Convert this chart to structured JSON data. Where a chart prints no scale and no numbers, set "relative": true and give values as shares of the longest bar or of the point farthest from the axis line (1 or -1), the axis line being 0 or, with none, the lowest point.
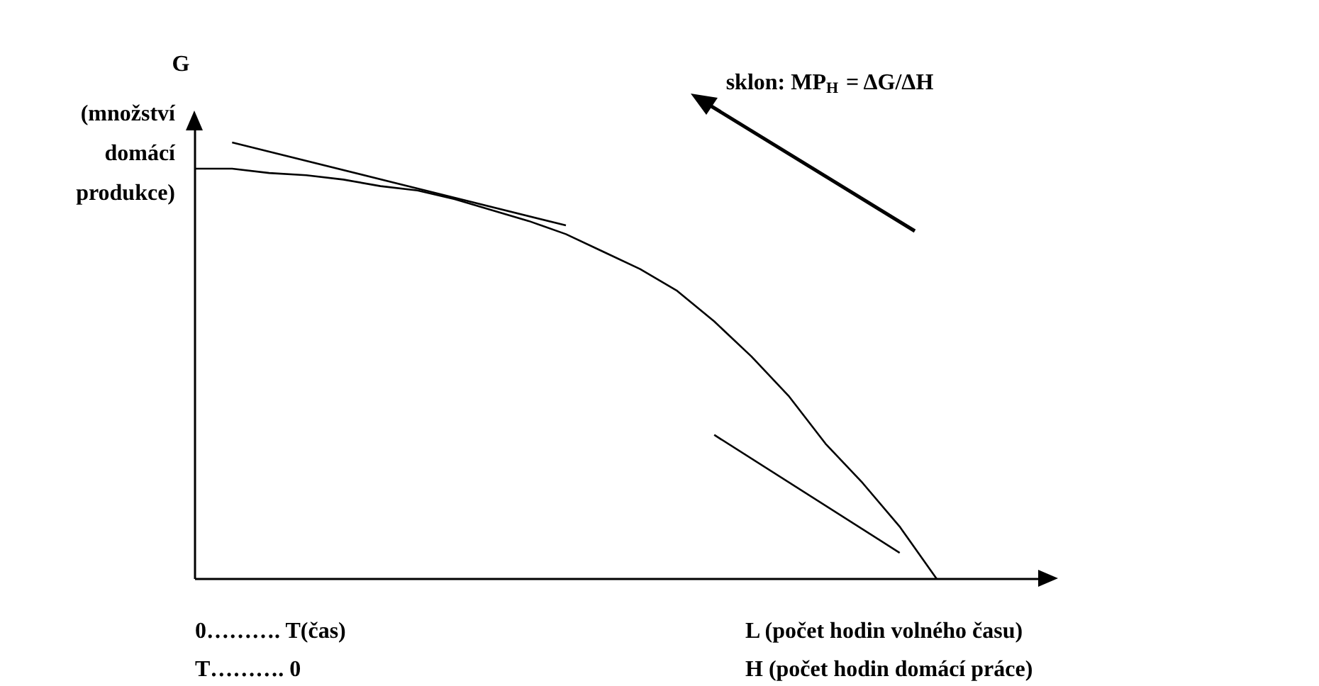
{
  "chart_data": {
    "type": "line",
    "relative": true,
    "ylabel": "G",
    "tick_labels": false,
    "grid": false,
    "marker": "none",
    "line_style": "solid",
    "annotations": [
      "(množství domácí produkce)",
      "0………. T(čas)",
      "T………. 0",
      "L (počet hodin volného času)",
      "H (počet hodin domácí práce)",
      "sklon: MP$_{H}$ = ΔG/ΔH"
    ],
    "categories": [
      null,
      null,
      null,
      null,
      null,
      null,
      null,
      null,
      null,
      null,
      null,
      null,
      null,
      null,
      null,
      null,
      null,
      null,
      null,
      null,
      null
    ],
    "series": [
      {
        "color": "#000000",
        "values": [
          0.94,
          0.94,
          0.93,
          0.925,
          0.915,
          0.9,
          0.89,
          0.87,
          0.845,
          0.82,
          0.79,
          0.75,
          0.71,
          0.66,
          0.59,
          0.51,
          0.42,
          0.31,
          0.22,
          0.12,
          0
        ]
      },
      {
        "color": "#000000",
        "values": [
          null,
          1.0,
          null,
          null,
          null,
          null,
          null,
          null,
          null,
          null,
          0.81,
          null,
          null,
          null,
          null,
          null,
          null,
          null,
          null,
          null,
          null
        ]
      },
      {
        "color": "#000000",
        "values": [
          null,
          null,
          null,
          null,
          null,
          null,
          null,
          null,
          null,
          null,
          null,
          null,
          null,
          null,
          0.33,
          null,
          null,
          null,
          null,
          0.06,
          null
        ]
      }
    ]
  }
}
